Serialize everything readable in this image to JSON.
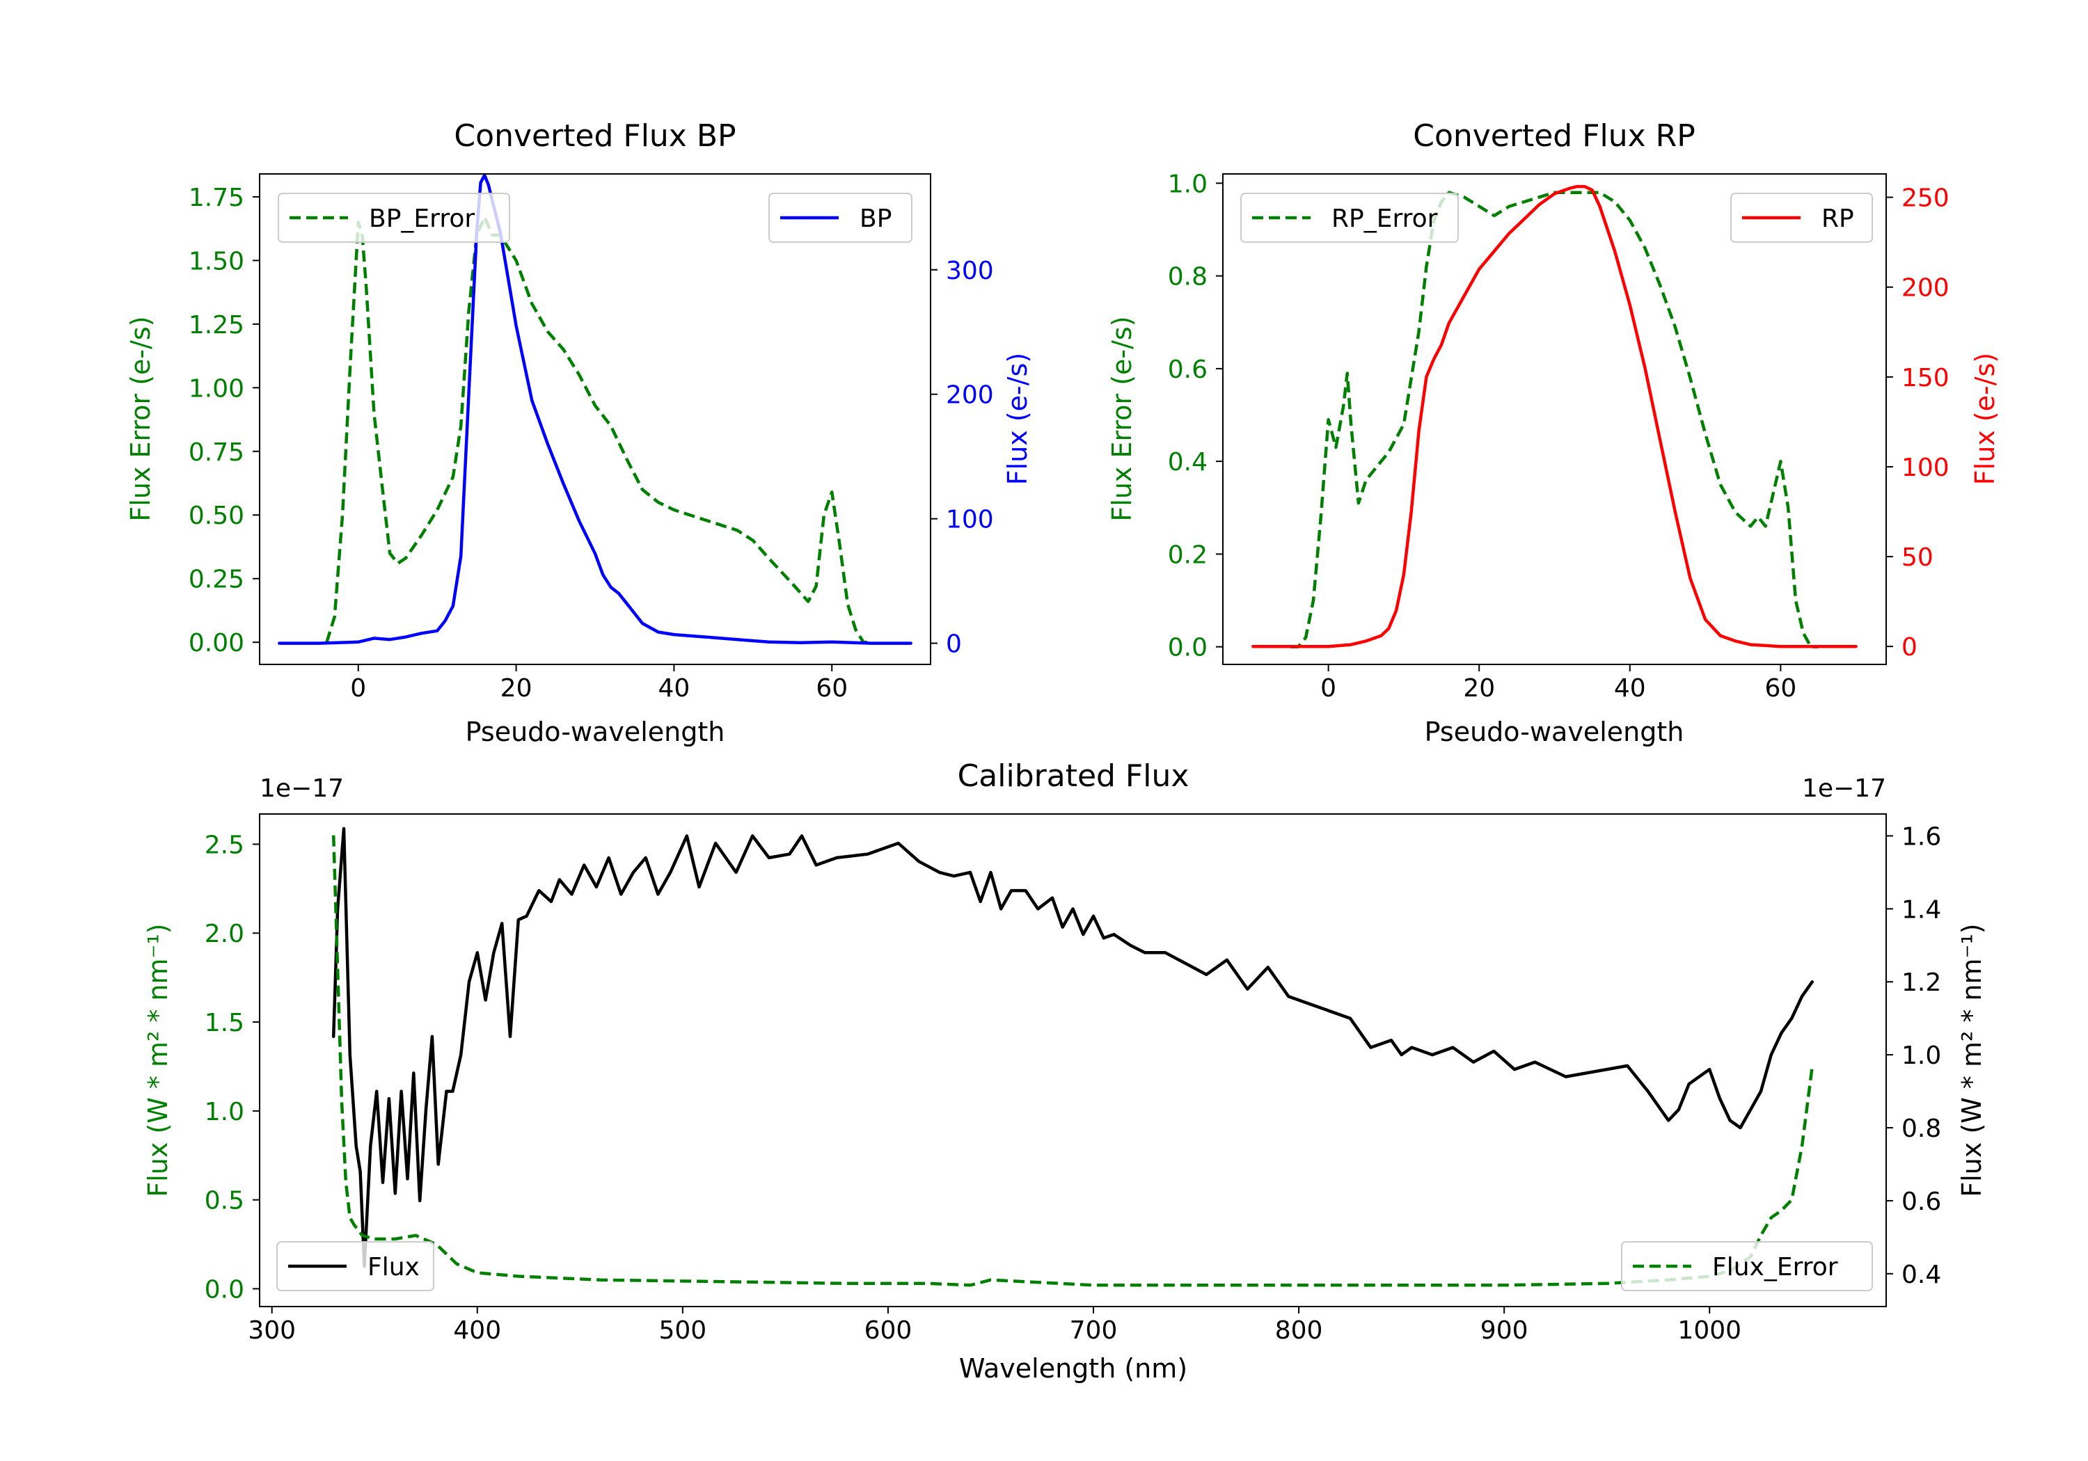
{
  "colors": {
    "green": "#008000",
    "blue": "#0000ff",
    "red": "#ff0000",
    "black": "#000000"
  },
  "chart_data": [
    {
      "type": "line",
      "title": "Converted Flux BP",
      "xlabel": "Pseudo-wavelength",
      "ylabel_left": "Flux Error (e-/s)",
      "ylabel_right": "Flux (e-/s)",
      "xlim": [
        -12.5,
        72.5
      ],
      "ylim_left": [
        -0.087,
        1.84
      ],
      "ylim_right": [
        -17,
        377
      ],
      "xticks": [
        0,
        20,
        40,
        60
      ],
      "yticks_left": [
        0.0,
        0.25,
        0.5,
        0.75,
        1.0,
        1.25,
        1.5,
        1.75
      ],
      "yticks_left_labels": [
        "0.00",
        "0.25",
        "0.50",
        "0.75",
        "1.00",
        "1.25",
        "1.50",
        "1.75"
      ],
      "yticks_right": [
        0,
        100,
        200,
        300
      ],
      "yticks_right_labels": [
        "0",
        "100",
        "200",
        "300"
      ],
      "legend_left": "BP_Error",
      "legend_right": "BP",
      "series": [
        {
          "name": "BP_Error",
          "axis": "left",
          "style": "dashed",
          "color": "#008000",
          "x": [
            -4,
            -3,
            -2,
            -1,
            0,
            0.5,
            1,
            2,
            3,
            4,
            5,
            6,
            8,
            10,
            12,
            13,
            14,
            15,
            16,
            17,
            18,
            20,
            22,
            24,
            26,
            28,
            30,
            32,
            34,
            36,
            38,
            40,
            44,
            48,
            50,
            52,
            55,
            57,
            58,
            59,
            60,
            61,
            62,
            63,
            64,
            65
          ],
          "y": [
            0.0,
            0.1,
            0.5,
            1.1,
            1.65,
            1.6,
            1.4,
            0.9,
            0.62,
            0.35,
            0.31,
            0.33,
            0.42,
            0.52,
            0.65,
            0.85,
            1.3,
            1.6,
            1.67,
            1.6,
            1.6,
            1.5,
            1.33,
            1.22,
            1.15,
            1.05,
            0.93,
            0.85,
            0.72,
            0.6,
            0.55,
            0.52,
            0.48,
            0.44,
            0.4,
            0.33,
            0.23,
            0.16,
            0.22,
            0.5,
            0.59,
            0.38,
            0.15,
            0.05,
            0.0,
            0.0
          ]
        },
        {
          "name": "BP",
          "axis": "right",
          "style": "solid",
          "color": "#0000ff",
          "x": [
            -10,
            -5,
            0,
            2,
            4,
            6,
            8,
            10,
            11,
            12,
            13,
            14,
            15,
            15.5,
            16,
            16.5,
            17,
            18,
            20,
            22,
            24,
            26,
            28,
            30,
            31,
            32,
            33,
            34,
            35,
            36,
            38,
            40,
            44,
            48,
            52,
            56,
            60,
            65,
            70
          ],
          "y": [
            0,
            0,
            1,
            4,
            3,
            5,
            8,
            10,
            18,
            30,
            70,
            200,
            330,
            370,
            376,
            368,
            355,
            330,
            255,
            195,
            160,
            128,
            98,
            72,
            55,
            45,
            40,
            32,
            24,
            16,
            9,
            7,
            5,
            3,
            1,
            0.5,
            1,
            0,
            0
          ]
        }
      ]
    },
    {
      "type": "line",
      "title": "Converted Flux RP",
      "xlabel": "Pseudo-wavelength",
      "ylabel_left": "Flux Error (e-/s)",
      "ylabel_right": "Flux (e-/s)",
      "xlim": [
        -14,
        74
      ],
      "ylim_left": [
        -0.038,
        1.02
      ],
      "ylim_right": [
        -10,
        263
      ],
      "xticks": [
        0,
        20,
        40,
        60
      ],
      "yticks_left": [
        0.0,
        0.2,
        0.4,
        0.6,
        0.8,
        1.0
      ],
      "yticks_left_labels": [
        "0.0",
        "0.2",
        "0.4",
        "0.6",
        "0.8",
        "1.0"
      ],
      "yticks_right": [
        0,
        50,
        100,
        150,
        200,
        250
      ],
      "yticks_right_labels": [
        "0",
        "50",
        "100",
        "150",
        "200",
        "250"
      ],
      "legend_left": "RP_Error",
      "legend_right": "RP",
      "series": [
        {
          "name": "RP_Error",
          "axis": "left",
          "style": "dashed",
          "color": "#008000",
          "x": [
            -5,
            -4,
            -3,
            -2,
            -1,
            0,
            1,
            2,
            2.5,
            3,
            4,
            5,
            6,
            8,
            10,
            12,
            13,
            14,
            15,
            16,
            18,
            20,
            22,
            24,
            26,
            28,
            30,
            32,
            34,
            36,
            38,
            40,
            42,
            44,
            46,
            48,
            50,
            52,
            54,
            56,
            57,
            58,
            59,
            60,
            61,
            62,
            63,
            64,
            65
          ],
          "y": [
            0.0,
            0.0,
            0.02,
            0.1,
            0.28,
            0.49,
            0.43,
            0.52,
            0.59,
            0.48,
            0.31,
            0.36,
            0.38,
            0.42,
            0.48,
            0.68,
            0.82,
            0.92,
            0.96,
            0.98,
            0.97,
            0.95,
            0.93,
            0.95,
            0.96,
            0.97,
            0.98,
            0.98,
            0.98,
            0.98,
            0.96,
            0.92,
            0.86,
            0.78,
            0.69,
            0.58,
            0.46,
            0.35,
            0.29,
            0.26,
            0.28,
            0.26,
            0.33,
            0.4,
            0.3,
            0.1,
            0.03,
            0.0,
            0.0
          ]
        },
        {
          "name": "RP",
          "axis": "right",
          "style": "solid",
          "color": "#ff0000",
          "x": [
            -10,
            -5,
            0,
            3,
            5,
            7,
            8,
            9,
            10,
            11,
            12,
            13,
            14,
            15,
            16,
            18,
            20,
            22,
            24,
            26,
            28,
            30,
            32,
            33,
            34,
            35,
            36,
            38,
            40,
            42,
            44,
            46,
            48,
            50,
            52,
            54,
            56,
            60,
            65,
            70
          ],
          "y": [
            0,
            0,
            0,
            1,
            3,
            6,
            10,
            20,
            40,
            75,
            120,
            150,
            160,
            168,
            180,
            195,
            210,
            220,
            230,
            238,
            246,
            252,
            255,
            256,
            256,
            254,
            245,
            220,
            190,
            155,
            115,
            75,
            38,
            15,
            6,
            3,
            1,
            0,
            0,
            0
          ]
        }
      ]
    },
    {
      "type": "line",
      "title": "Calibrated Flux",
      "xlabel": "Wavelength (nm)",
      "ylabel_left": "Flux (W * m² * nm⁻¹)",
      "ylabel_right": "Flux (W * m² * nm⁻¹)",
      "offset_left": "1e−17",
      "offset_right": "1e−17",
      "xlim": [
        294,
        1086
      ],
      "ylim_left": [
        -0.1,
        2.67
      ],
      "ylim_right": [
        0.31,
        1.66
      ],
      "xticks": [
        300,
        400,
        500,
        600,
        700,
        800,
        900,
        1000
      ],
      "yticks_left": [
        0.0,
        0.5,
        1.0,
        1.5,
        2.0,
        2.5
      ],
      "yticks_left_labels": [
        "0.0",
        "0.5",
        "1.0",
        "1.5",
        "2.0",
        "2.5"
      ],
      "yticks_right": [
        0.4,
        0.6,
        0.8,
        1.0,
        1.2,
        1.4,
        1.6
      ],
      "yticks_right_labels": [
        "0.4",
        "0.6",
        "0.8",
        "1.0",
        "1.2",
        "1.4",
        "1.6"
      ],
      "legend_left": "Flux",
      "legend_right": "Flux_Error",
      "series": [
        {
          "name": "Flux",
          "axis": "right",
          "style": "solid",
          "color": "#000000",
          "x": [
            330,
            332,
            335,
            338,
            341,
            343,
            345,
            348,
            351,
            354,
            357,
            360,
            363,
            366,
            369,
            372,
            375,
            378,
            381,
            385,
            388,
            392,
            396,
            400,
            404,
            408,
            412,
            416,
            420,
            424,
            430,
            436,
            440,
            446,
            452,
            458,
            464,
            470,
            476,
            482,
            488,
            494,
            502,
            508,
            516,
            526,
            534,
            542,
            552,
            558,
            565,
            575,
            590,
            605,
            615,
            625,
            632,
            640,
            645,
            650,
            655,
            660,
            667,
            673,
            680,
            685,
            690,
            695,
            700,
            705,
            710,
            718,
            725,
            735,
            745,
            755,
            765,
            775,
            785,
            795,
            805,
            815,
            825,
            835,
            845,
            850,
            855,
            865,
            875,
            885,
            895,
            905,
            915,
            930,
            940,
            950,
            960,
            970,
            980,
            985,
            990,
            1000,
            1005,
            1010,
            1015,
            1020,
            1025,
            1030,
            1035,
            1040,
            1045,
            1050
          ],
          "y": [
            1.05,
            1.4,
            1.62,
            1.0,
            0.75,
            0.68,
            0.42,
            0.75,
            0.9,
            0.65,
            0.88,
            0.62,
            0.9,
            0.66,
            0.95,
            0.6,
            0.85,
            1.05,
            0.7,
            0.9,
            0.9,
            1.0,
            1.2,
            1.28,
            1.15,
            1.28,
            1.36,
            1.05,
            1.37,
            1.38,
            1.45,
            1.42,
            1.48,
            1.44,
            1.52,
            1.46,
            1.54,
            1.44,
            1.5,
            1.54,
            1.44,
            1.5,
            1.6,
            1.46,
            1.58,
            1.5,
            1.6,
            1.54,
            1.55,
            1.6,
            1.52,
            1.54,
            1.55,
            1.58,
            1.53,
            1.5,
            1.49,
            1.5,
            1.42,
            1.5,
            1.4,
            1.45,
            1.45,
            1.4,
            1.43,
            1.35,
            1.4,
            1.33,
            1.38,
            1.32,
            1.33,
            1.3,
            1.28,
            1.28,
            1.25,
            1.22,
            1.26,
            1.18,
            1.24,
            1.16,
            1.14,
            1.12,
            1.1,
            1.02,
            1.04,
            1.0,
            1.02,
            1.0,
            1.02,
            0.98,
            1.01,
            0.96,
            0.98,
            0.94,
            0.95,
            0.96,
            0.97,
            0.9,
            0.82,
            0.85,
            0.92,
            0.96,
            0.88,
            0.82,
            0.8,
            0.85,
            0.9,
            1.0,
            1.06,
            1.1,
            1.16,
            1.2
          ]
        },
        {
          "name": "Flux_Error",
          "axis": "left",
          "style": "dashed",
          "color": "#008000",
          "x": [
            330,
            332,
            334,
            336,
            338,
            340,
            344,
            350,
            360,
            370,
            380,
            390,
            400,
            420,
            460,
            520,
            580,
            620,
            640,
            650,
            700,
            800,
            900,
            950,
            980,
            1000,
            1010,
            1020,
            1025,
            1030,
            1035,
            1040,
            1045,
            1050
          ],
          "y": [
            2.55,
            1.8,
            1.05,
            0.6,
            0.4,
            0.36,
            0.3,
            0.28,
            0.28,
            0.3,
            0.25,
            0.14,
            0.09,
            0.07,
            0.05,
            0.04,
            0.03,
            0.03,
            0.02,
            0.05,
            0.02,
            0.02,
            0.02,
            0.03,
            0.05,
            0.07,
            0.1,
            0.18,
            0.3,
            0.4,
            0.44,
            0.5,
            0.8,
            1.25
          ]
        }
      ]
    }
  ]
}
